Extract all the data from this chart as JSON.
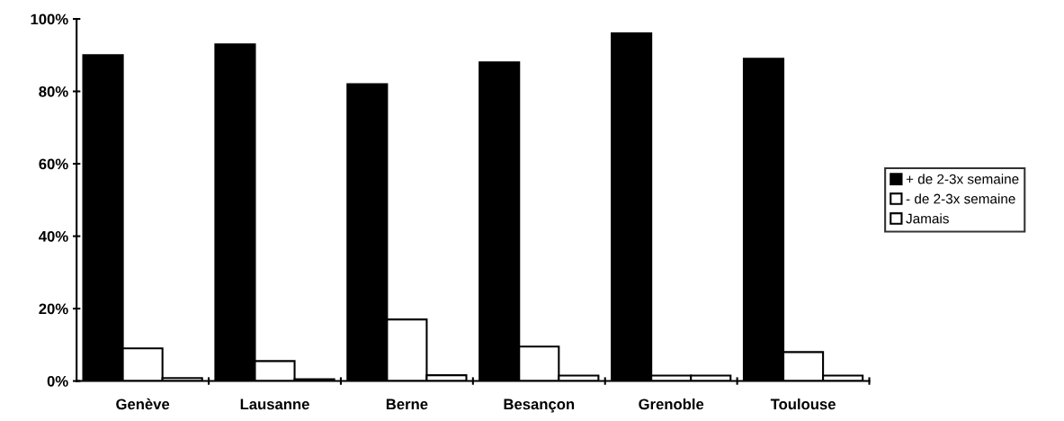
{
  "chart_data": {
    "type": "bar",
    "categories": [
      "Genève",
      "Lausanne",
      "Berne",
      "Besançon",
      "Grenoble",
      "Toulouse"
    ],
    "series": [
      {
        "name": "+ de 2-3x semaine",
        "color": "#000000",
        "values": [
          90,
          93,
          82,
          88,
          96,
          89
        ]
      },
      {
        "name": "- de 2-3x semaine",
        "color": "#ffffff",
        "values": [
          9,
          5.5,
          17,
          9.5,
          1.5,
          8
        ]
      },
      {
        "name": "Jamais",
        "color": "#ffffff",
        "values": [
          0.8,
          0.5,
          1.6,
          1.5,
          1.5,
          1.5
        ]
      }
    ],
    "ylim": [
      0,
      100
    ],
    "yticks": [
      {
        "value": 0,
        "label": "0%"
      },
      {
        "value": 20,
        "label": "20%"
      },
      {
        "value": 40,
        "label": "40%"
      },
      {
        "value": 60,
        "label": "60%"
      },
      {
        "value": 80,
        "label": "80%"
      },
      {
        "value": 100,
        "label": "100%"
      }
    ],
    "grid": false,
    "legend": "right"
  }
}
